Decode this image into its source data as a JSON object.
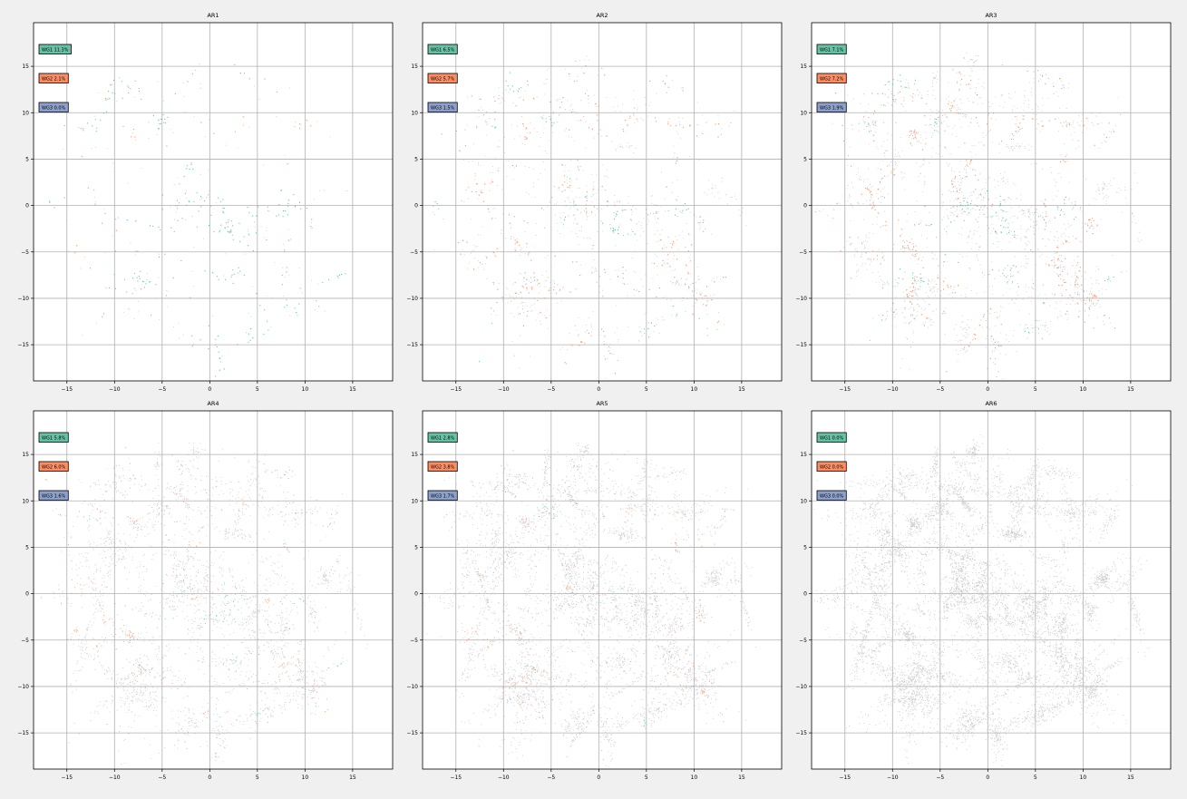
{
  "colors": {
    "figure_bg": "#f0f0f0",
    "axes_bg": "#ffffff",
    "grid": "#b0b0b0",
    "background_points": "#c8c8c8",
    "WG1": "#66c2a5",
    "WG2": "#fc8d62",
    "WG3": "#8da0cb"
  },
  "chart_data": [
    {
      "type": "scatter",
      "title": "AR1",
      "xlim": [
        -18.5,
        19.2
      ],
      "ylim": [
        -18.9,
        19.7
      ],
      "xticks": [
        -15,
        -10,
        -5,
        0,
        5,
        10,
        15
      ],
      "yticks": [
        -15,
        -10,
        -5,
        0,
        5,
        10,
        15
      ],
      "grid": true,
      "background_density": 0.02,
      "legend": [
        {
          "label": "WG1 11.3%",
          "group": "WG1",
          "fraction": 0.113
        },
        {
          "label": "WG2 2.1%",
          "group": "WG2",
          "fraction": 0.021
        },
        {
          "label": "WG3 0.0%",
          "group": "WG3",
          "fraction": 0.0
        }
      ]
    },
    {
      "type": "scatter",
      "title": "AR2",
      "xlim": [
        -18.5,
        19.2
      ],
      "ylim": [
        -18.9,
        19.7
      ],
      "xticks": [
        -15,
        -10,
        -5,
        0,
        5,
        10,
        15
      ],
      "yticks": [
        -15,
        -10,
        -5,
        0,
        5,
        10,
        15
      ],
      "grid": true,
      "background_density": 0.1,
      "legend": [
        {
          "label": "WG1 6.5%",
          "group": "WG1",
          "fraction": 0.065
        },
        {
          "label": "WG2 5.7%",
          "group": "WG2",
          "fraction": 0.057
        },
        {
          "label": "WG3 1.5%",
          "group": "WG3",
          "fraction": 0.015
        }
      ]
    },
    {
      "type": "scatter",
      "title": "AR3",
      "xlim": [
        -18.5,
        19.2
      ],
      "ylim": [
        -18.9,
        19.7
      ],
      "xticks": [
        -15,
        -10,
        -5,
        0,
        5,
        10,
        15
      ],
      "yticks": [
        -15,
        -10,
        -5,
        0,
        5,
        10,
        15
      ],
      "grid": true,
      "background_density": 0.22,
      "legend": [
        {
          "label": "WG1 7.1%",
          "group": "WG1",
          "fraction": 0.071
        },
        {
          "label": "WG2 7.2%",
          "group": "WG2",
          "fraction": 0.072
        },
        {
          "label": "WG3 1.9%",
          "group": "WG3",
          "fraction": 0.019
        }
      ]
    },
    {
      "type": "scatter",
      "title": "AR4",
      "xlim": [
        -18.5,
        19.2
      ],
      "ylim": [
        -18.9,
        19.7
      ],
      "xticks": [
        -15,
        -10,
        -5,
        0,
        5,
        10,
        15
      ],
      "yticks": [
        -15,
        -10,
        -5,
        0,
        5,
        10,
        15
      ],
      "grid": true,
      "background_density": 0.38,
      "legend": [
        {
          "label": "WG1 5.8%",
          "group": "WG1",
          "fraction": 0.058
        },
        {
          "label": "WG2 6.0%",
          "group": "WG2",
          "fraction": 0.06
        },
        {
          "label": "WG3 1.6%",
          "group": "WG3",
          "fraction": 0.016
        }
      ]
    },
    {
      "type": "scatter",
      "title": "AR5",
      "xlim": [
        -18.5,
        19.2
      ],
      "ylim": [
        -18.9,
        19.7
      ],
      "xticks": [
        -15,
        -10,
        -5,
        0,
        5,
        10,
        15
      ],
      "yticks": [
        -15,
        -10,
        -5,
        0,
        5,
        10,
        15
      ],
      "grid": true,
      "background_density": 0.6,
      "legend": [
        {
          "label": "WG1 2.8%",
          "group": "WG1",
          "fraction": 0.028
        },
        {
          "label": "WG2 3.8%",
          "group": "WG2",
          "fraction": 0.038
        },
        {
          "label": "WG3 1.7%",
          "group": "WG3",
          "fraction": 0.017
        }
      ]
    },
    {
      "type": "scatter",
      "title": "AR6",
      "xlim": [
        -18.5,
        19.2
      ],
      "ylim": [
        -18.9,
        19.7
      ],
      "xticks": [
        -15,
        -10,
        -5,
        0,
        5,
        10,
        15
      ],
      "yticks": [
        -15,
        -10,
        -5,
        0,
        5,
        10,
        15
      ],
      "grid": true,
      "background_density": 1.0,
      "legend": [
        {
          "label": "WG1 0.0%",
          "group": "WG1",
          "fraction": 0.0
        },
        {
          "label": "WG2 0.0%",
          "group": "WG2",
          "fraction": 0.0
        },
        {
          "label": "WG3 0.0%",
          "group": "WG3",
          "fraction": 0.0
        }
      ]
    }
  ]
}
